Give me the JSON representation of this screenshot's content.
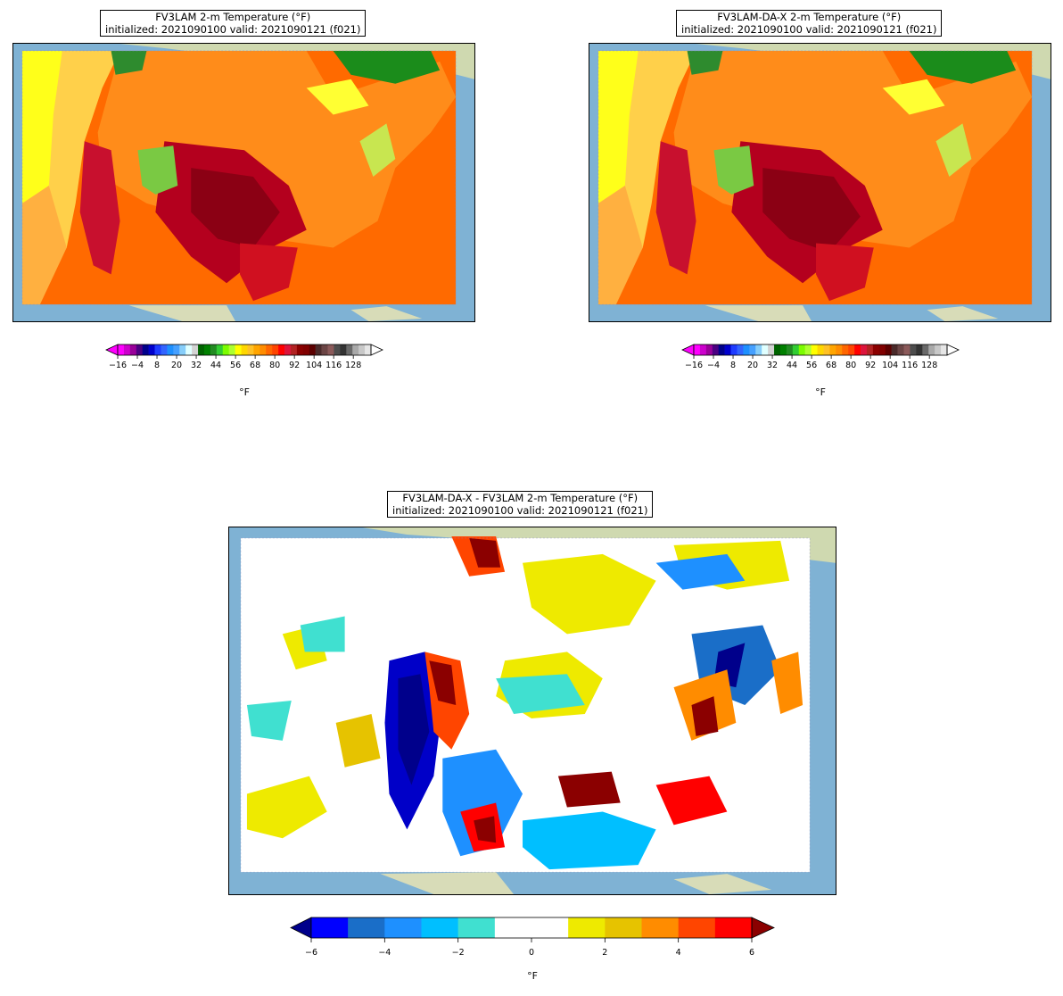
{
  "panels": [
    {
      "id": "fv3lam",
      "title_line1": "FV3LAM 2-m Temperature (°F)",
      "title_line2": "initialized: 2021090100 valid: 2021090121 (f021)",
      "colorbar_unit": "°F"
    },
    {
      "id": "fv3lam-da-x",
      "title_line1": "FV3LAM-DA-X 2-m Temperature (°F)",
      "title_line2": "initialized: 2021090100 valid: 2021090121 (f021)",
      "colorbar_unit": "°F"
    },
    {
      "id": "difference",
      "title_line1": "FV3LAM-DA-X - FV3LAM 2-m Temperature (°F)",
      "title_line2": "initialized: 2021090100 valid: 2021090121 (f021)",
      "colorbar_unit": "°F"
    }
  ],
  "temperature_colorbar": {
    "ticks": [
      "−16",
      "−4",
      "8",
      "20",
      "32",
      "44",
      "56",
      "68",
      "80",
      "92",
      "104",
      "116",
      "128"
    ],
    "colors": [
      "#ff00ff",
      "#cc00cc",
      "#990099",
      "#4b0082",
      "#00008b",
      "#0000cd",
      "#1e3cff",
      "#3264ff",
      "#1e90ff",
      "#46a0ff",
      "#87cefa",
      "#e0ffff",
      "#d3d3d3",
      "#006400",
      "#008000",
      "#228b22",
      "#32cd32",
      "#7cfc00",
      "#adff2f",
      "#ffff00",
      "#ffd700",
      "#ffc125",
      "#ffa500",
      "#ff8c00",
      "#ff6600",
      "#ff4500",
      "#ff0000",
      "#dc143c",
      "#b22222",
      "#8b0000",
      "#800000",
      "#5c0000",
      "#4a2a2a",
      "#6b4545",
      "#8b5a5a",
      "#4d4d4d",
      "#333333",
      "#696969",
      "#a9a9a9",
      "#c8c8c8",
      "#e6e6e6"
    ]
  },
  "difference_colorbar": {
    "ticks": [
      "−6",
      "−4",
      "−2",
      "0",
      "2",
      "4",
      "6"
    ],
    "colors": [
      "#0000ff",
      "#1a6ec8",
      "#1e90ff",
      "#00bfff",
      "#40e0d0",
      "#ffffff",
      "#ffffff",
      "#eeea00",
      "#e6c300",
      "#ff8c00",
      "#ff4500",
      "#ff0000"
    ],
    "under_color": "#00008b",
    "over_color": "#8b0000"
  }
}
